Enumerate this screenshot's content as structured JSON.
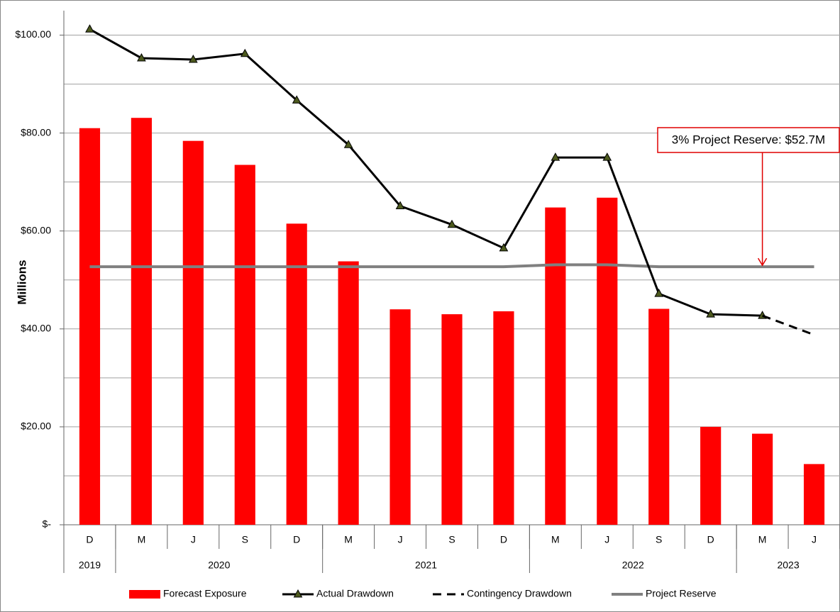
{
  "chart_data": {
    "type": "bar_line",
    "y_axis_label": "Millions",
    "categories": [
      "D",
      "M",
      "J",
      "S",
      "D",
      "M",
      "J",
      "S",
      "D",
      "M",
      "J",
      "S",
      "D",
      "M",
      "J"
    ],
    "year_groups": [
      {
        "label": "2019",
        "count": 1
      },
      {
        "label": "2020",
        "count": 4
      },
      {
        "label": "2021",
        "count": 4
      },
      {
        "label": "2022",
        "count": 4
      },
      {
        "label": "2023",
        "count": 2
      }
    ],
    "series": [
      {
        "name": "Forecast Exposure",
        "kind": "bar",
        "color": "#ff0000",
        "values": [
          81,
          83.1,
          78.4,
          73.5,
          61.5,
          53.8,
          44,
          43,
          43.6,
          64.8,
          66.8,
          44.1,
          20,
          18.6,
          12.4
        ]
      },
      {
        "name": "Actual Drawdown",
        "kind": "line",
        "marker": "triangle",
        "color": "#000000",
        "values": [
          101.2,
          95.3,
          95,
          96.2,
          86.7,
          77.6,
          65.1,
          61.3,
          56.5,
          75,
          75,
          47.2,
          43,
          42.7,
          null
        ]
      },
      {
        "name": "Contingency Drawdown",
        "kind": "dashed",
        "color": "#000000",
        "values": [
          null,
          null,
          null,
          null,
          null,
          null,
          null,
          null,
          null,
          null,
          null,
          null,
          null,
          42.7,
          38.8
        ]
      },
      {
        "name": "Project Reserve",
        "kind": "line",
        "color": "#808080",
        "values": [
          52.7,
          52.7,
          52.7,
          52.7,
          52.7,
          52.7,
          52.7,
          52.7,
          52.7,
          53.1,
          53.1,
          52.7,
          52.7,
          52.7,
          52.7
        ]
      }
    ],
    "annotation": "3% Project Reserve: $52.7M",
    "ylim": [
      0,
      105
    ],
    "yticks": [
      {
        "value": 0,
        "label": "$-"
      },
      {
        "value": 20,
        "label": "$20.00"
      },
      {
        "value": 40,
        "label": "$40.00"
      },
      {
        "value": 60,
        "label": "$60.00"
      },
      {
        "value": 80,
        "label": "$80.00"
      },
      {
        "value": 100,
        "label": "$100.00"
      }
    ],
    "minor_yticks": [
      10,
      30,
      50,
      70,
      90
    ],
    "grid": true,
    "legend": "bottom"
  }
}
